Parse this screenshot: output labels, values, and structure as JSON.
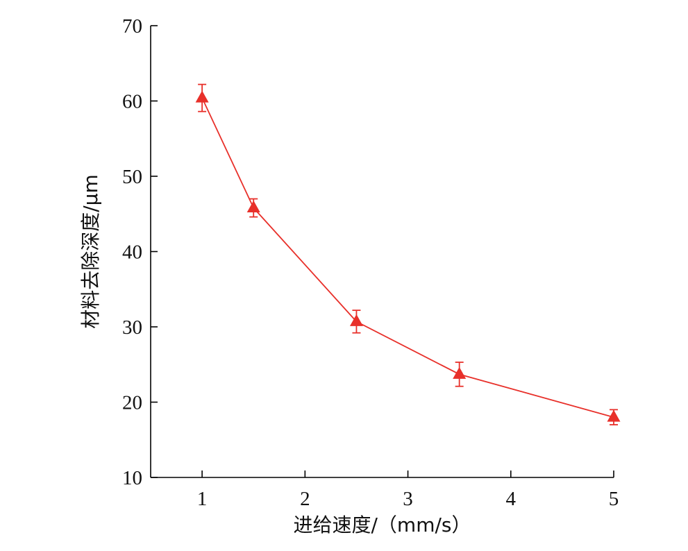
{
  "chart_data": {
    "type": "line",
    "title": "",
    "xlabel": "进给速度/（mm/s）",
    "ylabel": "材料去除深度/μm",
    "xlim": [
      0.5,
      5
    ],
    "ylim": [
      10,
      70
    ],
    "x_ticks": [
      1,
      2,
      3,
      4,
      5
    ],
    "y_ticks": [
      10,
      20,
      30,
      40,
      50,
      60,
      70
    ],
    "grid": false,
    "marker": "triangle",
    "color": "#e8302a",
    "series": [
      {
        "x": [
          1,
          1.5,
          2.5,
          3.5,
          5
        ],
        "y": [
          60.4,
          45.8,
          30.7,
          23.7,
          18.0
        ],
        "err": [
          1.8,
          1.2,
          1.5,
          1.6,
          1.0
        ]
      }
    ]
  }
}
